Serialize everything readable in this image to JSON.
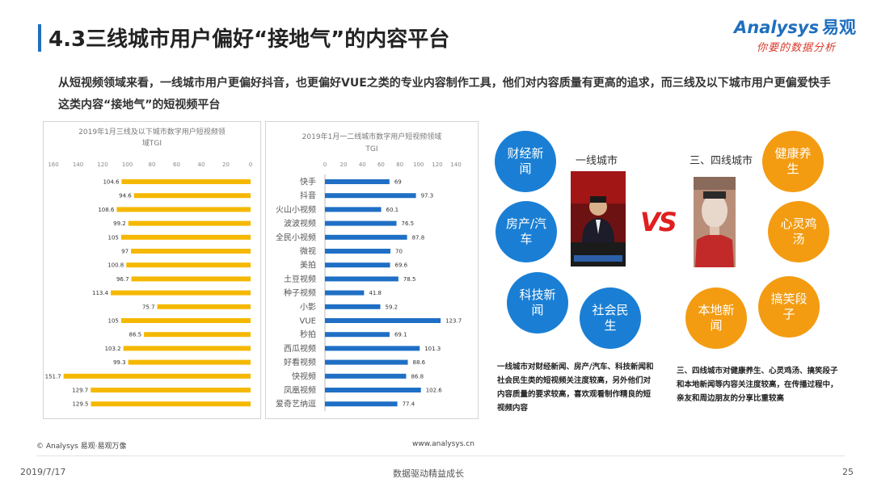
{
  "title": "4.3三线城市用户偏好“接地气”的内容平台",
  "logo": {
    "brand": "Analysys",
    "brand_cn": "易观",
    "slogan": "你要的数据分析"
  },
  "intro": "从短视频领域来看，一线城市用户更偏好抖音，也更偏好VUE之类的专业内容制作工具，他们对内容质量有更高的追求，而三线及以下城市用户更偏爱快手这类内容“接地气”的短视频平台",
  "chart_data": [
    {
      "type": "bar",
      "orientation": "horizontal",
      "direction": "right-to-left",
      "title": "2019年1月三线及以下城市数字用户短视频领域TGI",
      "title_line1": "2019年1月三线及以下城市数字用户短视频领",
      "title_line2": "域TGI",
      "xlim": [
        0,
        160
      ],
      "xticks": [
        160,
        140,
        120,
        100,
        80,
        60,
        40,
        20,
        0
      ],
      "categories": [
        "快手",
        "抖音",
        "火山小视频",
        "波波视频",
        "全民小视频",
        "微视",
        "美拍",
        "土豆视频",
        "种子视频",
        "小影",
        "VUE",
        "秒拍",
        "西瓜视频",
        "好看视频",
        "快视频",
        "凤凰视频",
        "爱奇艺纳逗"
      ],
      "values": [
        104.6,
        94.6,
        108.6,
        99.2,
        105,
        97,
        100.8,
        96.7,
        113.4,
        75.7,
        105,
        86.5,
        103.2,
        99.3,
        151.7,
        129.7,
        129.5
      ],
      "color": "#f5b800",
      "grid": false
    },
    {
      "type": "bar",
      "orientation": "horizontal",
      "title": "2019年1月一二线城市数字用户短视频领域TGI",
      "title_line1": "2019年1月一二线城市数字用户短视频领域",
      "title_line2": "TGI",
      "xlim": [
        0,
        140
      ],
      "xticks": [
        0,
        20,
        40,
        60,
        80,
        100,
        120,
        140
      ],
      "categories": [
        "快手",
        "抖音",
        "火山小视频",
        "波波视频",
        "全民小视频",
        "微视",
        "美拍",
        "土豆视频",
        "种子视频",
        "小影",
        "VUE",
        "秒拍",
        "西瓜视频",
        "好看视频",
        "快视频",
        "凤凰视频",
        "爱奇艺纳逗"
      ],
      "values": [
        69,
        97.3,
        60.1,
        76.5,
        87.8,
        70,
        69.6,
        78.5,
        41.8,
        59.2,
        123.7,
        69.1,
        101.3,
        88.6,
        86.8,
        102.6,
        77.4
      ],
      "color": "#1f6fc5",
      "grid": false
    }
  ],
  "tier1": {
    "label": "一线城市",
    "circles": [
      {
        "text": "财经新闻"
      },
      {
        "text": "房产/汽车"
      },
      {
        "text": "科技新闻"
      },
      {
        "text": "社会民生"
      }
    ],
    "note": "一线城市对财经新闻、房产/汽车、科技新闻和社会民生类的短视频关注度较高，另外他们对内容质量的要求较高，喜欢观看制作精良的短视频内容"
  },
  "vs": "VS",
  "tier34": {
    "label": "三、四线城市",
    "circles": [
      {
        "text": "健康养生"
      },
      {
        "text": "心灵鸡汤"
      },
      {
        "text": "本地新闻"
      },
      {
        "text": "搞笑段子"
      }
    ],
    "note": "三、四线城市对健康养生、心灵鸡汤、搞笑段子和本地新闻等内容关注度较高，在传播过程中，亲友和周边朋友的分享比重较高"
  },
  "footer": {
    "source": "© Analysys 易观·易观万像",
    "url": "www.analysys.cn",
    "date": "2019/7/17",
    "slogan": "数据驱动精益成长",
    "page": "25"
  }
}
